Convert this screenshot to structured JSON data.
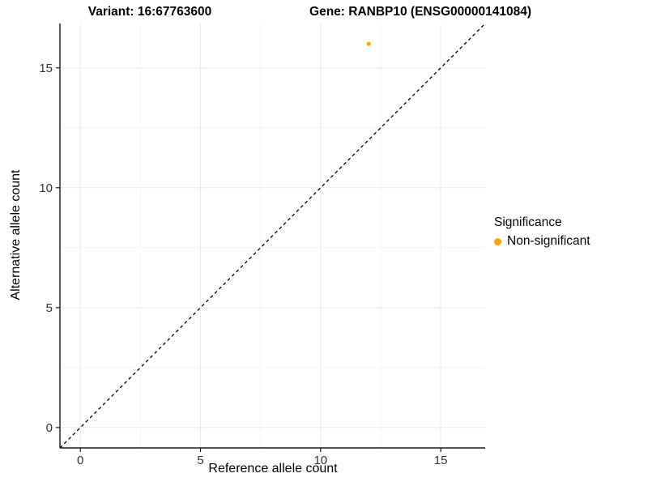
{
  "titles": {
    "variant": "Variant: 16:67763600",
    "gene": "Gene: RANBP10 (ENSG00000141084)"
  },
  "chart_data": {
    "type": "scatter",
    "xlabel": "Reference allele count",
    "ylabel": "Alternative allele count",
    "xlim": [
      -0.85,
      16.85
    ],
    "ylim": [
      -0.85,
      16.85
    ],
    "x_major_ticks": [
      0,
      5,
      10,
      15
    ],
    "y_major_ticks": [
      0,
      5,
      10,
      15
    ],
    "x_minor_gridlines": [
      2.5,
      7.5,
      12.5
    ],
    "y_minor_gridlines": [
      2.5,
      7.5,
      12.5
    ],
    "grid": true,
    "reference_line": {
      "type": "identity y=x",
      "style": "dashed",
      "color": "#000000",
      "dash": "4 3.5"
    },
    "series": [
      {
        "name": "Non-significant",
        "color": "#FFA500",
        "points": [
          {
            "x": 12,
            "y": 16
          }
        ],
        "point_radius": 2.6
      }
    ],
    "legend": {
      "title": "Significance",
      "position": "right",
      "entries": [
        {
          "label": "Non-significant",
          "color": "#FFA500"
        }
      ]
    },
    "colors": {
      "grid_major": "#EBEBEB",
      "grid_minor": "#F4F4F4",
      "axis": "#1A1A1A",
      "tick_label": "#333333",
      "background": "#FFFFFF"
    }
  }
}
